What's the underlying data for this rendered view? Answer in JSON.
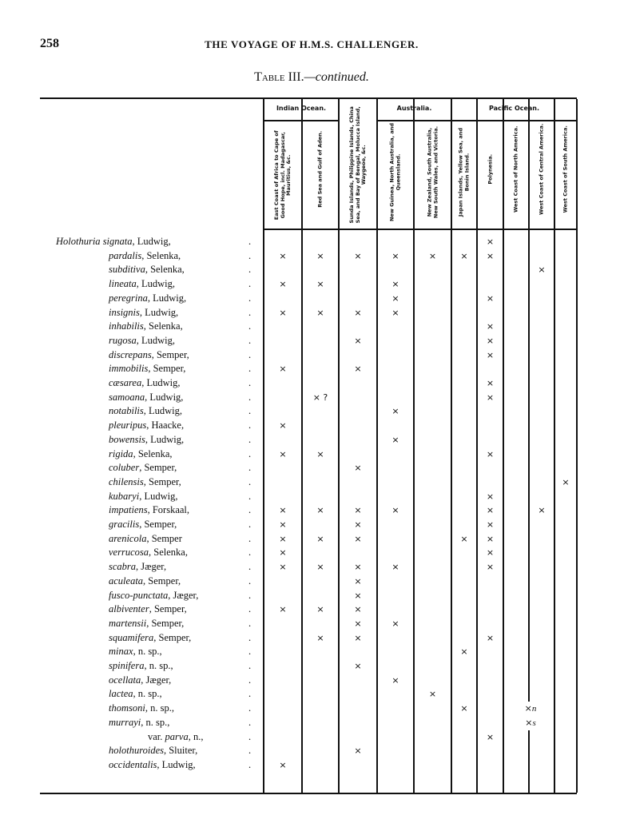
{
  "page_number": "258",
  "running_head": "THE VOYAGE OF H.M.S. CHALLENGER.",
  "table_title": {
    "label": "Table III.",
    "suffix": "—continued."
  },
  "groups": [
    {
      "label": "Indian Ocean.",
      "cols": [
        1,
        2
      ]
    },
    {
      "label": "Australia.",
      "cols": [
        4,
        5
      ]
    },
    {
      "label": "Pacific Ocean.",
      "cols": [
        6,
        10
      ]
    }
  ],
  "columns": [
    "East Coast of Africa to Cape of Good Hope, incl. Madagascar, Mauritius, &c.",
    "Red Sea and Gulf of Aden.",
    "Sunda Islands, Philippine Islands, China Sea, and Bay of Bengal, Molucca Island, Waygeoo, &c.",
    "New Guinea, North Australia, and Queensland.",
    "New Zealand, South Australia, New South Wales, and Victoria.",
    "Japan Islands, Yellow Sea, and Bonin Island.",
    "Polynesia.",
    "West Coast of North America.",
    "West Coast of Central America.",
    "West Coast of South America."
  ],
  "leader": ".",
  "rows": [
    {
      "genus": "Holothuria",
      "species": "signata",
      "authority": ", Ludwig,",
      "marks": {
        "7": "×"
      }
    },
    {
      "species": "pardalis",
      "authority": ", Selenka,",
      "marks": {
        "1": "×",
        "2": "×",
        "3": "×",
        "4": "×",
        "5": "×",
        "6": "×",
        "7": "×"
      }
    },
    {
      "species": "subditiva",
      "authority": ", Selenka,",
      "marks": {
        "9": "×"
      }
    },
    {
      "species": "lineata",
      "authority": ", Ludwig,",
      "marks": {
        "1": "×",
        "2": "×",
        "4": "×"
      }
    },
    {
      "species": "peregrina",
      "authority": ", Ludwig,",
      "marks": {
        "4": "×",
        "7": "×"
      }
    },
    {
      "species": "insignis",
      "authority": ", Ludwig,",
      "marks": {
        "1": "×",
        "2": "×",
        "3": "×",
        "4": "×"
      }
    },
    {
      "species": "inhabilis",
      "authority": ", Selenka,",
      "marks": {
        "7": "×"
      }
    },
    {
      "species": "rugosa",
      "authority": ", Ludwig,",
      "marks": {
        "3": "×",
        "7": "×"
      }
    },
    {
      "species": "discrepans",
      "authority": ", Semper,",
      "marks": {
        "7": "×"
      }
    },
    {
      "species": "immobilis",
      "authority": ", Semper,",
      "marks": {
        "1": "×",
        "3": "×"
      }
    },
    {
      "species": "cæsarea",
      "authority": ", Ludwig,",
      "marks": {
        "7": "×"
      }
    },
    {
      "species": "samoana",
      "authority": ", Ludwig,",
      "marks": {
        "2": "× ?",
        "7": "×"
      }
    },
    {
      "species": "notabilis",
      "authority": ", Ludwig,",
      "marks": {
        "4": "×"
      }
    },
    {
      "species": "pleuripus",
      "authority": ", Haacke,",
      "marks": {
        "1": "×"
      }
    },
    {
      "species": "bowensis",
      "authority": ", Ludwig,",
      "marks": {
        "4": "×"
      }
    },
    {
      "species": "rigida",
      "authority": ", Selenka,",
      "marks": {
        "1": "×",
        "2": "×",
        "7": "×"
      }
    },
    {
      "species": "coluber",
      "authority": ", Semper,",
      "marks": {
        "3": "×"
      }
    },
    {
      "species": "chilensis",
      "authority": ", Semper,",
      "marks": {
        "10": "×"
      }
    },
    {
      "species": "kubaryi",
      "authority": ", Ludwig,",
      "marks": {
        "7": "×"
      }
    },
    {
      "species": "impatiens",
      "authority": ", Forskaal,",
      "marks": {
        "1": "×",
        "2": "×",
        "3": "×",
        "4": "×",
        "7": "×",
        "9": "×"
      }
    },
    {
      "species": "gracilis",
      "authority": ", Semper,",
      "marks": {
        "1": "×",
        "3": "×",
        "7": "×"
      }
    },
    {
      "species": "arenicola",
      "authority": ", Semper",
      "marks": {
        "1": "×",
        "2": "×",
        "3": "×",
        "6": "×",
        "7": "×"
      }
    },
    {
      "species": "verrucosa",
      "authority": ", Selenka,",
      "marks": {
        "1": "×",
        "7": "×"
      }
    },
    {
      "species": "scabra",
      "authority": ", Jæger,",
      "marks": {
        "1": "×",
        "2": "×",
        "3": "×",
        "4": "×",
        "7": "×"
      }
    },
    {
      "species": "aculeata",
      "authority": ", Semper,",
      "marks": {
        "3": "×"
      }
    },
    {
      "species": "fusco-punctata",
      "authority": ", Jæger,",
      "marks": {
        "3": "×"
      }
    },
    {
      "species": "albiventer",
      "authority": ", Semper,",
      "marks": {
        "1": "×",
        "2": "×",
        "3": "×"
      }
    },
    {
      "species": "martensii",
      "authority": ", Semper,",
      "marks": {
        "3": "×",
        "4": "×"
      }
    },
    {
      "species": "squamifera",
      "authority": ", Semper,",
      "marks": {
        "2": "×",
        "3": "×",
        "7": "×"
      }
    },
    {
      "species": "minax",
      "authority": ", n. sp.,",
      "marks": {
        "6": "×"
      }
    },
    {
      "species": "spinifera",
      "authority": ", n. sp.,",
      "marks": {
        "3": "×"
      }
    },
    {
      "species": "ocellata",
      "authority": ", Jæger,",
      "marks": {
        "4": "×"
      }
    },
    {
      "species": "lactea",
      "authority": ", n. sp.,",
      "marks": {
        "5": "×"
      }
    },
    {
      "species": "thomsoni",
      "authority": ", n. sp.,",
      "marks": {
        "6": "×",
        "8": "×n"
      }
    },
    {
      "species": "murrayi",
      "authority": ", n. sp.,",
      "marks": {
        "8": "×s"
      }
    },
    {
      "prefix": "var. ",
      "species": "parva",
      "authority": ", n.,",
      "marks": {
        "7": "×"
      }
    },
    {
      "species": "holothuroides",
      "authority": ", Sluiter,",
      "marks": {
        "3": "×"
      }
    },
    {
      "species": "occidentalis",
      "authority": ", Ludwig,",
      "marks": {
        "1": "×"
      }
    }
  ]
}
